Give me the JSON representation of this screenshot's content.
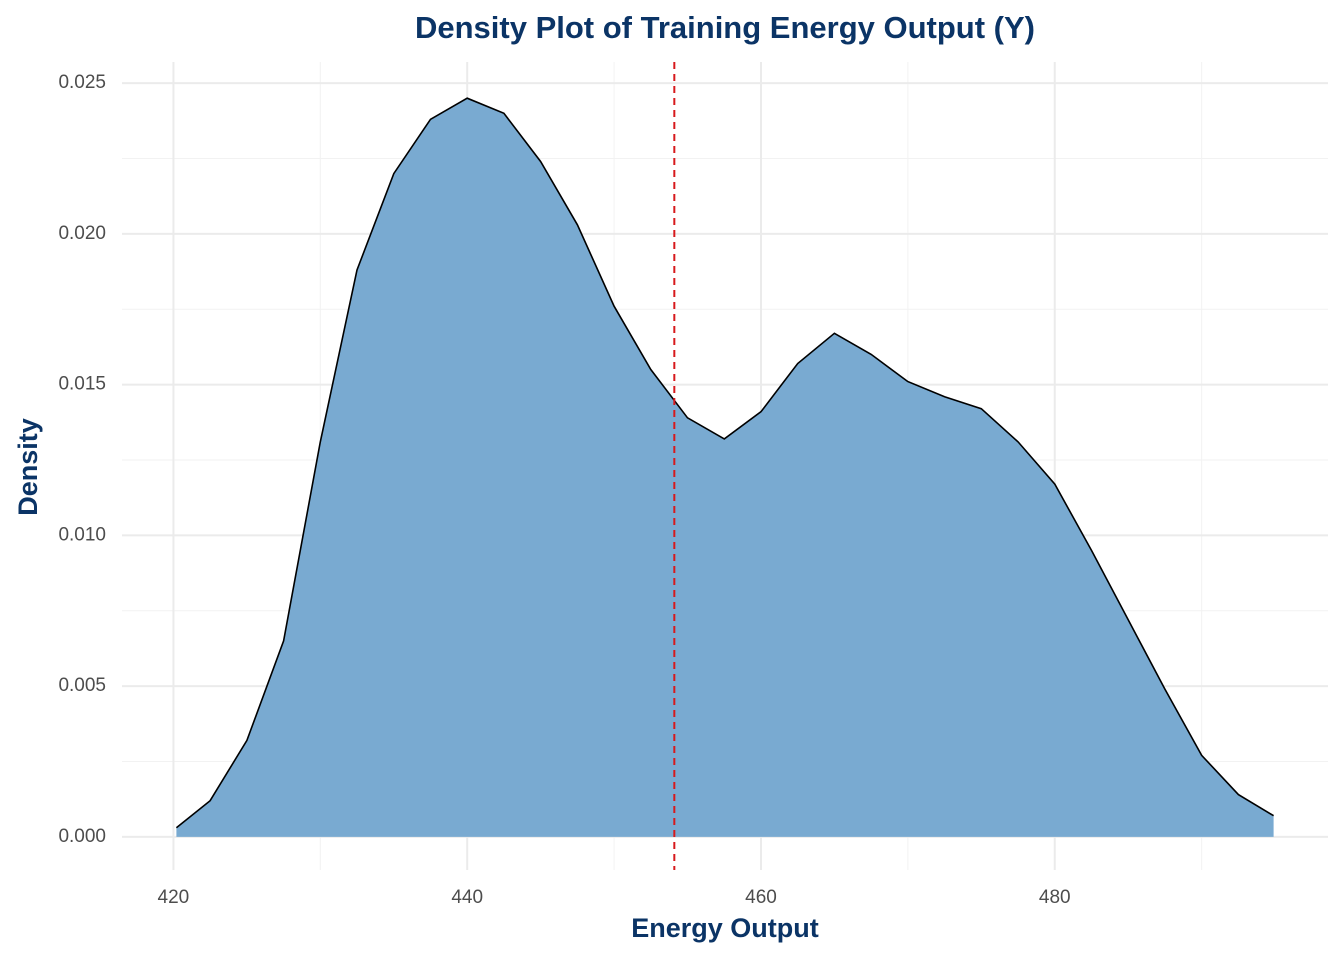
{
  "chart_data": {
    "type": "density",
    "title": "Density Plot of Training Energy Output (Y)",
    "x_label": "Energy Output",
    "y_label": "Density",
    "x": [
      420.2,
      422.5,
      425,
      427.5,
      430,
      432.5,
      435,
      437.5,
      440,
      442.5,
      445,
      447.5,
      450,
      452.5,
      455,
      457.5,
      460,
      462.5,
      465,
      467.5,
      470,
      472.5,
      475,
      477.5,
      480,
      482.5,
      485,
      487.5,
      490,
      492.5,
      494.9
    ],
    "values": [
      0.0003,
      0.0012,
      0.0032,
      0.0065,
      0.0131,
      0.0188,
      0.022,
      0.0238,
      0.0245,
      0.024,
      0.0224,
      0.0203,
      0.0176,
      0.0155,
      0.0139,
      0.0132,
      0.0141,
      0.0157,
      0.0167,
      0.016,
      0.0151,
      0.0146,
      0.0142,
      0.0131,
      0.0117,
      0.0095,
      0.0072,
      0.0049,
      0.0027,
      0.0014,
      0.0007
    ],
    "color": "#79aad1",
    "line_color": "#000000",
    "vline": 454.1,
    "vline_color": "#d7191c",
    "xlim": [
      416.5,
      498.6
    ],
    "ylim": [
      -0.0011,
      0.0257
    ],
    "xticks": [
      420,
      440,
      460,
      480
    ],
    "xminor_ticks": [
      430,
      450,
      470,
      490
    ],
    "yticks": [
      {
        "value": 0,
        "label": "0.000"
      },
      {
        "value": 0.005,
        "label": "0.005"
      },
      {
        "value": 0.01,
        "label": "0.010"
      },
      {
        "value": 0.015,
        "label": "0.015"
      },
      {
        "value": 0.02,
        "label": "0.020"
      },
      {
        "value": 0.025,
        "label": "0.025"
      }
    ],
    "yminor_ticks": [
      0.0025,
      0.0075,
      0.0125,
      0.0175,
      0.0225
    ],
    "grid": true
  }
}
